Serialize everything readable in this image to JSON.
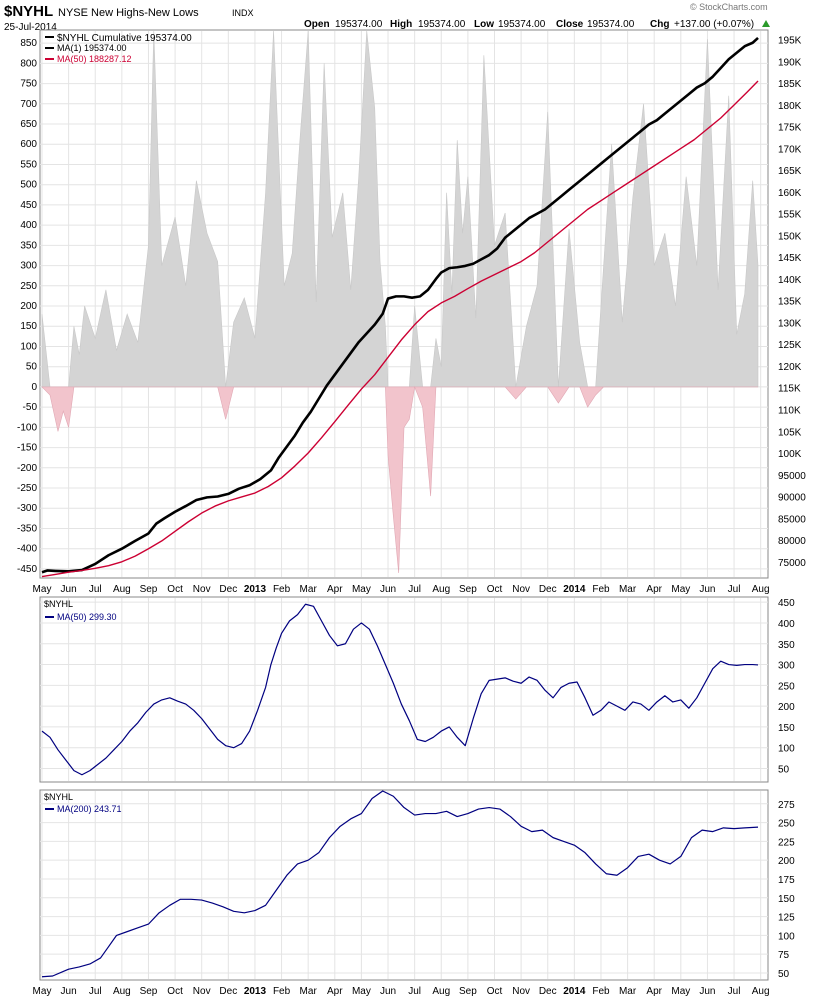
{
  "header": {
    "symbol": "$NYHL",
    "name": "NYSE New Highs-New Lows",
    "exchange": "INDX",
    "date": "25-Jul-2014",
    "open_label": "Open",
    "open": "195374.00",
    "high_label": "High",
    "high": "195374.00",
    "low_label": "Low",
    "low": "195374.00",
    "close_label": "Close",
    "close": "195374.00",
    "chg_label": "Chg",
    "chg": "+137.00 (+0.07%)",
    "watermark": "© StockCharts.com"
  },
  "colors": {
    "black": "#000000",
    "red": "#cc0033",
    "navy": "#000080",
    "area": "#d4d4d4",
    "neg": "#f2c4cc",
    "grid": "#e4e4e4",
    "axis": "#666666"
  },
  "x_axis": {
    "labels": [
      "May",
      "Jun",
      "Jul",
      "Aug",
      "Sep",
      "Oct",
      "Nov",
      "Dec",
      "2013",
      "Feb",
      "Mar",
      "Apr",
      "May",
      "Jun",
      "Jul",
      "Aug",
      "Sep",
      "Oct",
      "Nov",
      "Dec",
      "2014",
      "Feb",
      "Mar",
      "Apr",
      "May",
      "Jun",
      "Jul",
      "Aug"
    ],
    "months": [
      0,
      1,
      2,
      3,
      4,
      5,
      6,
      7,
      8,
      9,
      10,
      11,
      12,
      13,
      14,
      15,
      16,
      17,
      18,
      19,
      20,
      21,
      22,
      23,
      24,
      25,
      26,
      27
    ]
  },
  "chart_data": [
    {
      "type": "area",
      "panel": "main",
      "title": "$NYHL NYSE New Highs-New Lows INDX",
      "legend": [
        {
          "text": "$NYHL Cumulative 195374.00",
          "color": "#000000"
        },
        {
          "text": "MA(1) 195374.00",
          "color": "#000000"
        },
        {
          "text": "MA(50) 188287.12",
          "color": "#cc0033"
        }
      ],
      "left_axis": {
        "range": [
          -470,
          880
        ],
        "ticks": [
          -450,
          -400,
          -350,
          -300,
          -250,
          -200,
          -150,
          -100,
          -50,
          0,
          50,
          100,
          150,
          200,
          250,
          300,
          350,
          400,
          450,
          500,
          550,
          600,
          650,
          700,
          750,
          800,
          850
        ]
      },
      "right_axis": {
        "range": [
          71500,
          197000
        ],
        "ticks": [
          75000,
          80000,
          85000,
          90000,
          95000,
          100000,
          105000,
          110000,
          115000,
          120000,
          125000,
          130000,
          135000,
          140000,
          145000,
          150000,
          155000,
          160000,
          165000,
          170000,
          175000,
          180000,
          185000,
          190000,
          195000
        ],
        "tick_labels": [
          "75000",
          "80000",
          "85000",
          "90000",
          "95000",
          "100K",
          "105K",
          "110K",
          "115K",
          "120K",
          "125K",
          "130K",
          "135K",
          "140K",
          "145K",
          "150K",
          "155K",
          "160K",
          "165K",
          "170K",
          "175K",
          "180K",
          "185K",
          "190K",
          "195K"
        ]
      },
      "daily_values": {
        "x": [
          0,
          0.3,
          0.6,
          0.8,
          1.0,
          1.2,
          1.4,
          1.6,
          2.0,
          2.4,
          2.8,
          3.2,
          3.6,
          4.0,
          4.2,
          4.5,
          5.0,
          5.4,
          5.8,
          6.2,
          6.6,
          6.9,
          7.2,
          7.6,
          8.0,
          8.4,
          8.7,
          9.1,
          9.4,
          9.7,
          10.0,
          10.3,
          10.6,
          10.9,
          11.3,
          11.6,
          11.9,
          12.2,
          12.5,
          12.7,
          12.9,
          13.0,
          13.2,
          13.4,
          13.6,
          13.8,
          14.0,
          14.3,
          14.6,
          14.8,
          15.0,
          15.2,
          15.4,
          15.6,
          15.8,
          16.0,
          16.3,
          16.6,
          17.0,
          17.4,
          17.8,
          18.2,
          18.6,
          19.0,
          19.4,
          19.8,
          20.2,
          20.5,
          20.8,
          21.1,
          21.4,
          21.8,
          22.2,
          22.6,
          23.0,
          23.4,
          23.8,
          24.2,
          24.6,
          25.0,
          25.4,
          25.8,
          26.1,
          26.4,
          26.7,
          26.9
        ],
        "values": [
          180,
          -20,
          -110,
          -60,
          -100,
          150,
          80,
          200,
          120,
          240,
          90,
          180,
          110,
          350,
          880,
          300,
          420,
          250,
          510,
          380,
          310,
          -80,
          160,
          220,
          120,
          480,
          880,
          250,
          330,
          620,
          880,
          210,
          800,
          370,
          480,
          240,
          520,
          880,
          690,
          310,
          150,
          -170,
          -320,
          -460,
          -100,
          -80,
          200,
          -50,
          -270,
          120,
          50,
          480,
          230,
          610,
          380,
          520,
          170,
          820,
          350,
          430,
          -30,
          150,
          250,
          680,
          -40,
          390,
          110,
          -50,
          -20,
          300,
          600,
          160,
          470,
          700,
          300,
          380,
          200,
          520,
          300,
          860,
          240,
          720,
          130,
          230,
          510,
          300
        ]
      },
      "series": [
        {
          "name": "$NYHL Cumulative",
          "axis": "right",
          "x": [
            0,
            0.2,
            0.5,
            1,
            1.5,
            2,
            2.5,
            3,
            3.5,
            4,
            4.3,
            4.6,
            5,
            5.4,
            5.8,
            6.2,
            6.6,
            7,
            7.4,
            7.8,
            8.2,
            8.6,
            8.9,
            9.2,
            9.5,
            9.8,
            10.1,
            10.4,
            10.7,
            11,
            11.3,
            11.6,
            11.9,
            12.2,
            12.5,
            12.8,
            13.0,
            13.3,
            13.6,
            13.9,
            14.2,
            14.5,
            14.8,
            15.0,
            15.3,
            15.6,
            15.9,
            16.2,
            16.5,
            16.8,
            17.1,
            17.4,
            17.7,
            18.0,
            18.3,
            18.6,
            18.9,
            19.2,
            19.5,
            19.8,
            20.1,
            20.4,
            20.7,
            21.0,
            21.3,
            21.6,
            21.9,
            22.2,
            22.5,
            22.8,
            23.1,
            23.4,
            23.7,
            24.0,
            24.3,
            24.6,
            24.9,
            25.2,
            25.5,
            25.8,
            26.1,
            26.4,
            26.7,
            26.9
          ],
          "values": [
            72600,
            73000,
            72900,
            72800,
            73100,
            74500,
            76500,
            78000,
            79800,
            81500,
            83800,
            85000,
            86500,
            87800,
            89200,
            89800,
            90000,
            90600,
            91800,
            92600,
            94000,
            96000,
            99000,
            101500,
            104000,
            107000,
            109500,
            112500,
            115500,
            118000,
            120500,
            123000,
            125500,
            127500,
            129500,
            132000,
            135500,
            136000,
            136000,
            135700,
            136000,
            137500,
            140000,
            141500,
            142500,
            142700,
            143000,
            143500,
            144500,
            145500,
            147000,
            149500,
            151000,
            152500,
            154000,
            155000,
            156000,
            157500,
            159000,
            160500,
            162000,
            163500,
            165000,
            166500,
            168000,
            169500,
            171000,
            172500,
            174000,
            175500,
            176500,
            178000,
            179500,
            181000,
            182500,
            184000,
            185000,
            186500,
            188500,
            190500,
            192000,
            193500,
            194300,
            195400
          ]
        },
        {
          "name": "MA(50)",
          "axis": "right",
          "x": [
            0,
            0.5,
            1,
            1.5,
            2,
            2.5,
            3,
            3.5,
            4,
            4.5,
            5,
            5.5,
            6,
            6.5,
            7,
            7.5,
            8,
            8.5,
            9,
            9.5,
            10,
            10.5,
            11,
            11.5,
            12,
            12.5,
            13,
            13.5,
            14,
            14.5,
            15,
            15.5,
            16,
            16.5,
            17,
            17.5,
            18,
            18.5,
            19,
            19.5,
            20,
            20.5,
            21,
            21.5,
            22,
            22.5,
            23,
            23.5,
            24,
            24.5,
            25,
            25.5,
            26,
            26.5,
            26.9
          ],
          "values": [
            71600,
            72100,
            72600,
            73000,
            73500,
            74100,
            75000,
            76300,
            78000,
            79800,
            82000,
            84200,
            86200,
            87800,
            89000,
            89900,
            90800,
            92300,
            94300,
            97000,
            100000,
            103500,
            107200,
            111000,
            114700,
            118000,
            122000,
            126000,
            129500,
            132500,
            134500,
            136000,
            137800,
            139500,
            141000,
            142500,
            144000,
            146000,
            148500,
            151000,
            153500,
            156000,
            158000,
            160000,
            162000,
            164000,
            166000,
            168000,
            170000,
            172000,
            174500,
            177000,
            180000,
            183000,
            185500
          ]
        }
      ]
    },
    {
      "type": "line",
      "panel": "middle",
      "title": "$NYHL",
      "legend": [
        {
          "text": "MA(50) 299.30",
          "color": "#000080"
        }
      ],
      "y_axis": {
        "range": [
          20,
          460
        ],
        "ticks": [
          50,
          100,
          150,
          200,
          250,
          300,
          350,
          400,
          450
        ]
      },
      "series": [
        {
          "name": "MA(50)",
          "x": [
            0,
            0.3,
            0.6,
            0.9,
            1.2,
            1.5,
            1.8,
            2.1,
            2.4,
            2.7,
            3.0,
            3.3,
            3.6,
            3.9,
            4.2,
            4.5,
            4.8,
            5.1,
            5.4,
            5.7,
            6.0,
            6.3,
            6.6,
            6.9,
            7.2,
            7.5,
            7.8,
            8.1,
            8.4,
            8.6,
            8.8,
            9.0,
            9.3,
            9.6,
            9.9,
            10.2,
            10.5,
            10.8,
            11.1,
            11.4,
            11.7,
            12.0,
            12.3,
            12.6,
            12.9,
            13.2,
            13.5,
            13.8,
            14.1,
            14.4,
            14.7,
            15.0,
            15.3,
            15.6,
            15.9,
            16.2,
            16.5,
            16.8,
            17.1,
            17.4,
            17.7,
            18.0,
            18.3,
            18.6,
            18.9,
            19.2,
            19.5,
            19.8,
            20.1,
            20.4,
            20.7,
            21.0,
            21.3,
            21.6,
            21.9,
            22.2,
            22.5,
            22.8,
            23.1,
            23.4,
            23.7,
            24.0,
            24.3,
            24.6,
            24.9,
            25.2,
            25.5,
            25.8,
            26.1,
            26.4,
            26.7,
            26.9
          ],
          "values": [
            140,
            125,
            95,
            70,
            45,
            35,
            45,
            60,
            75,
            95,
            115,
            140,
            160,
            185,
            205,
            215,
            220,
            212,
            205,
            190,
            170,
            145,
            120,
            105,
            100,
            110,
            140,
            190,
            245,
            300,
            340,
            375,
            405,
            420,
            445,
            440,
            405,
            370,
            345,
            350,
            385,
            400,
            385,
            345,
            300,
            255,
            205,
            165,
            120,
            115,
            125,
            140,
            150,
            125,
            105,
            170,
            230,
            262,
            265,
            268,
            260,
            255,
            270,
            262,
            238,
            220,
            245,
            255,
            258,
            220,
            178,
            190,
            210,
            200,
            190,
            210,
            205,
            190,
            210,
            225,
            210,
            215,
            195,
            220,
            255,
            290,
            308,
            300,
            298,
            300,
            300,
            299
          ]
        }
      ]
    },
    {
      "type": "line",
      "panel": "bottom",
      "title": "$NYHL",
      "legend": [
        {
          "text": "MA(200) 243.71",
          "color": "#000080"
        }
      ],
      "y_axis": {
        "range": [
          42,
          292
        ],
        "ticks": [
          50,
          75,
          100,
          125,
          150,
          175,
          200,
          225,
          250,
          275
        ]
      },
      "series": [
        {
          "name": "MA(200)",
          "x": [
            0,
            0.4,
            0.8,
            1.0,
            1.4,
            1.8,
            2.2,
            2.5,
            2.8,
            3.2,
            3.6,
            4.0,
            4.4,
            4.8,
            5.2,
            5.6,
            6.0,
            6.4,
            6.8,
            7.2,
            7.6,
            8.0,
            8.4,
            8.8,
            9.2,
            9.6,
            10.0,
            10.4,
            10.8,
            11.2,
            11.6,
            12.0,
            12.4,
            12.8,
            13.2,
            13.6,
            14.0,
            14.4,
            14.8,
            15.2,
            15.6,
            16.0,
            16.4,
            16.8,
            17.2,
            17.6,
            18.0,
            18.4,
            18.8,
            19.2,
            19.6,
            20.0,
            20.4,
            20.8,
            21.2,
            21.6,
            22.0,
            22.4,
            22.8,
            23.2,
            23.6,
            24.0,
            24.4,
            24.8,
            25.2,
            25.6,
            26.0,
            26.4,
            26.9
          ],
          "values": [
            45,
            46,
            52,
            55,
            58,
            62,
            70,
            85,
            100,
            105,
            110,
            115,
            130,
            140,
            148,
            148,
            147,
            143,
            138,
            132,
            130,
            133,
            140,
            160,
            180,
            195,
            200,
            210,
            230,
            245,
            255,
            262,
            282,
            292,
            285,
            270,
            260,
            262,
            262,
            265,
            258,
            262,
            268,
            270,
            268,
            258,
            245,
            238,
            240,
            230,
            225,
            220,
            210,
            195,
            182,
            180,
            190,
            205,
            208,
            200,
            195,
            205,
            230,
            240,
            238,
            243,
            242,
            243,
            244
          ]
        }
      ]
    }
  ]
}
